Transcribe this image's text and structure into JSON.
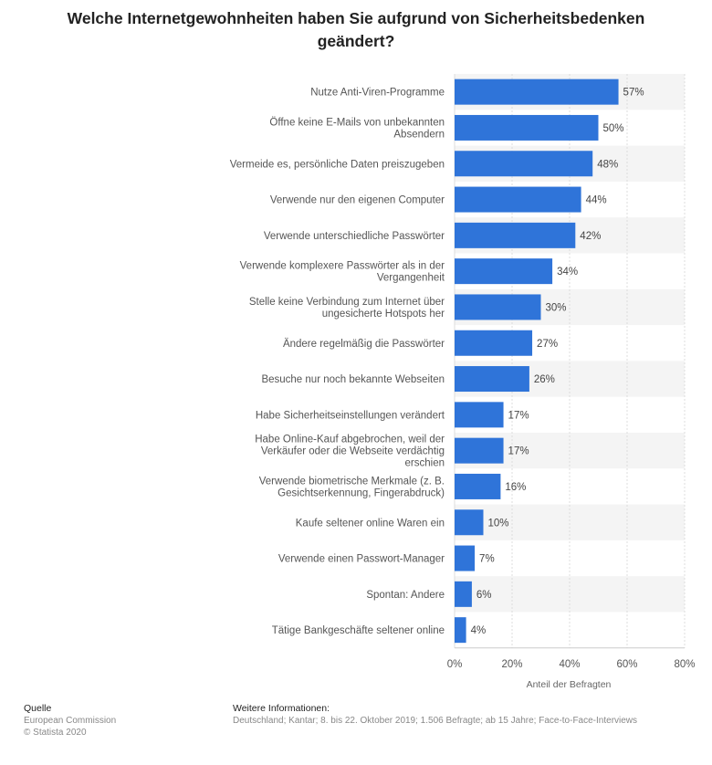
{
  "chart_data": {
    "type": "bar",
    "orientation": "horizontal",
    "title": "Welche Internetgewohnheiten haben Sie aufgrund von Sicherheitsbedenken geändert?",
    "xlabel": "Anteil der Befragten",
    "xlim": [
      0,
      80
    ],
    "ticks": [
      "0%",
      "20%",
      "40%",
      "60%",
      "80%"
    ],
    "tick_values": [
      0,
      20,
      40,
      60,
      80
    ],
    "bar_color": "#2f74d9",
    "grid": true,
    "categories": [
      [
        "Nutze Anti-Viren-Programme"
      ],
      [
        "Öffne keine E-Mails von unbekannten",
        "Absendern"
      ],
      [
        "Vermeide es, persönliche Daten preiszugeben"
      ],
      [
        "Verwende nur den eigenen Computer"
      ],
      [
        "Verwende unterschiedliche Passwörter"
      ],
      [
        "Verwende komplexere Passwörter als in der",
        "Vergangenheit"
      ],
      [
        "Stelle keine Verbindung zum Internet über",
        "ungesicherte Hotspots her"
      ],
      [
        "Ändere regelmäßig die Passwörter"
      ],
      [
        "Besuche nur noch bekannte Webseiten"
      ],
      [
        "Habe Sicherheitseinstellungen verändert"
      ],
      [
        "Habe Online-Kauf abgebrochen, weil der",
        "Verkäufer oder die Webseite verdächtig",
        "erschien"
      ],
      [
        "Verwende biometrische Merkmale (z. B.",
        "Gesichtserkennung, Fingerabdruck)"
      ],
      [
        "Kaufe seltener online Waren ein"
      ],
      [
        "Verwende einen Passwort-Manager"
      ],
      [
        "Spontan: Andere"
      ],
      [
        "Tätige Bankgeschäfte seltener online"
      ]
    ],
    "values": [
      57,
      50,
      48,
      44,
      42,
      34,
      30,
      27,
      26,
      17,
      17,
      16,
      10,
      7,
      6,
      4
    ],
    "value_labels": [
      "57%",
      "50%",
      "48%",
      "44%",
      "42%",
      "34%",
      "30%",
      "27%",
      "26%",
      "17%",
      "17%",
      "16%",
      "10%",
      "7%",
      "6%",
      "4%"
    ]
  },
  "footer": {
    "source_heading": "Quelle",
    "source_lines": [
      "European Commission",
      "© Statista 2020"
    ],
    "info_heading": "Weitere Informationen:",
    "info_text": "Deutschland; Kantar; 8. bis 22. Oktober 2019; 1.506 Befragte; ab 15 Jahre; Face-to-Face-Interviews"
  }
}
